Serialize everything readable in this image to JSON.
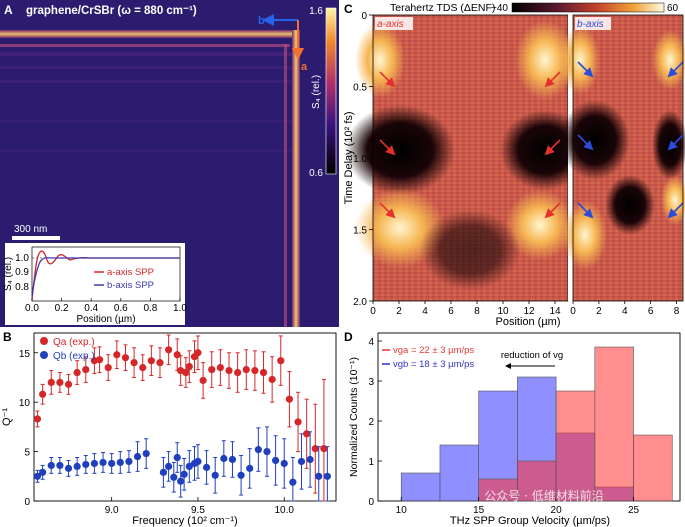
{
  "panelA": {
    "letter": "A",
    "title": "graphene/CrSBr (ω = 880 cm⁻¹)",
    "colorbar": {
      "max": "1.6",
      "min": "0.6",
      "label": "S₄ (rel.)",
      "low_color": "#1a1050",
      "high_color": "#fff4a0"
    },
    "scalebar": "300 nm",
    "arrow_b": "b",
    "arrow_a": "a",
    "inset": {
      "xlabel": "Position (µm)",
      "ylabel": "S₄ (rel.)",
      "xticks": [
        "0.0",
        "0.2",
        "0.4",
        "0.6",
        "0.8",
        "1.0"
      ],
      "yticks": [
        "0.8",
        "0.9",
        "1.0"
      ],
      "legend": [
        {
          "label": "a-axis SPP",
          "color": "#d62728"
        },
        {
          "label": "b-axis SPP",
          "color": "#3b3bb0"
        }
      ]
    }
  },
  "panelB": {
    "letter": "B",
    "xlabel": "Frequency (10² cm⁻¹)",
    "ylabel": "Q⁻¹",
    "legend": [
      {
        "label": "Qa (exp.)",
        "color": "#d62728"
      },
      {
        "label": "Qb (exp.)",
        "color": "#1f3fbf"
      }
    ],
    "chart_data": {
      "type": "scatter",
      "xlim": [
        8.55,
        10.3
      ],
      "ylim": [
        0,
        17
      ],
      "xticks": [
        9.0,
        9.5,
        10.0
      ],
      "yticks": [
        0,
        5,
        10,
        15
      ],
      "series": [
        {
          "name": "Qa (exp.)",
          "color": "#d62728",
          "x": [
            8.57,
            8.6,
            8.65,
            8.7,
            8.75,
            8.8,
            8.85,
            8.9,
            8.93,
            8.98,
            9.03,
            9.08,
            9.13,
            9.18,
            9.23,
            9.28,
            9.33,
            9.38,
            9.4,
            9.43,
            9.45,
            9.48,
            9.5,
            9.53,
            9.58,
            9.63,
            9.68,
            9.73,
            9.78,
            9.83,
            9.88,
            9.93,
            9.98,
            10.03,
            10.08,
            10.13,
            10.18,
            10.23
          ],
          "y": [
            8.3,
            10.8,
            12.0,
            12.0,
            11.8,
            13.0,
            13.3,
            14.2,
            14.3,
            13.5,
            14.8,
            14.5,
            14.0,
            13.5,
            14.2,
            14.0,
            15.3,
            14.8,
            13.2,
            13.0,
            13.6,
            14.6,
            15.0,
            12.2,
            13.3,
            13.5,
            13.2,
            13.0,
            13.3,
            13.2,
            13.0,
            12.3,
            14.2,
            10.3,
            8.0,
            6.8,
            5.3,
            5.3
          ],
          "err": [
            0.8,
            1.0,
            1.2,
            1.0,
            1.0,
            1.2,
            1.3,
            1.3,
            1.3,
            1.3,
            1.4,
            1.3,
            1.5,
            1.3,
            1.5,
            1.5,
            1.5,
            1.6,
            1.5,
            1.5,
            1.6,
            1.6,
            1.7,
            1.8,
            1.8,
            1.8,
            1.8,
            2.0,
            2.0,
            2.0,
            2.1,
            2.3,
            2.5,
            2.8,
            3.0,
            3.5,
            4.5,
            7.0
          ]
        },
        {
          "name": "Qb (exp.)",
          "color": "#1f3fbf",
          "x": [
            8.57,
            8.6,
            8.65,
            8.7,
            8.75,
            8.8,
            8.85,
            8.9,
            8.95,
            9.0,
            9.05,
            9.1,
            9.15,
            9.2,
            9.3,
            9.33,
            9.36,
            9.38,
            9.4,
            9.42,
            9.45,
            9.48,
            9.5,
            9.55,
            9.6,
            9.65,
            9.7,
            9.75,
            9.8,
            9.85,
            9.9,
            9.95,
            10.0,
            10.05,
            10.1,
            10.15,
            10.2,
            10.25
          ],
          "y": [
            2.5,
            2.9,
            3.6,
            3.6,
            3.3,
            3.5,
            3.7,
            3.8,
            3.9,
            3.8,
            3.9,
            4.0,
            4.5,
            4.8,
            2.9,
            3.5,
            2.4,
            4.4,
            2.0,
            2.7,
            3.5,
            3.8,
            4.0,
            3.4,
            2.6,
            4.3,
            4.2,
            2.6,
            3.3,
            5.2,
            5.0,
            4.1,
            3.8,
            1.9,
            4.0,
            4.2,
            2.5,
            2.5
          ],
          "err": [
            0.6,
            0.7,
            0.8,
            0.8,
            0.8,
            0.9,
            0.9,
            1.0,
            1.0,
            1.0,
            1.1,
            1.1,
            1.5,
            1.5,
            1.5,
            1.5,
            1.5,
            1.5,
            1.6,
            1.6,
            1.6,
            1.7,
            1.7,
            1.7,
            1.8,
            1.8,
            1.8,
            2.0,
            2.0,
            2.2,
            2.5,
            2.5,
            2.5,
            2.5,
            2.8,
            2.8,
            3.0,
            3.0
          ]
        }
      ]
    }
  },
  "panelC": {
    "letter": "C",
    "title": "Terahertz TDS (ΔENF)",
    "cbar_min": "−40",
    "cbar_max": "60",
    "sub_a": "a-axis",
    "sub_b": "b-axis",
    "xlabel": "Position (µm)",
    "ylabel": "Time Delay (10² fs)",
    "xticks_a": [
      "0",
      "2",
      "4",
      "6",
      "8",
      "10",
      "12",
      "14"
    ],
    "xticks_b": [
      "0",
      "2",
      "4",
      "6",
      "8"
    ],
    "yticks": [
      "0",
      "0.5",
      "1.0",
      "1.5",
      "2.0"
    ]
  },
  "panelD": {
    "letter": "D",
    "xlabel": "THz SPP Group Velocity (µm/ps)",
    "ylabel": "Normalized Counts (10⁻¹)",
    "annotation": "reduction of vg",
    "legend": [
      {
        "label": "vga = 22 ± 3 µm/ps",
        "color": "#e53935"
      },
      {
        "label": "vgb = 18 ± 3 µm/ps",
        "color": "#3333cc"
      }
    ],
    "watermark": "公众号 · 低维材料前沿",
    "chart_data": {
      "type": "bar",
      "xlim": [
        8.5,
        28
      ],
      "ylim": [
        0,
        4.2
      ],
      "xticks": [
        10,
        15,
        20,
        25
      ],
      "yticks": [
        0,
        1,
        2,
        3,
        4
      ],
      "bin_edges": [
        10,
        12.5,
        15,
        17.5,
        20,
        22.5,
        25,
        27.5
      ],
      "series": [
        {
          "name": "vgb",
          "color": "#3333ff",
          "values": [
            0.7,
            1.4,
            2.75,
            3.1,
            1.7,
            0.35,
            0
          ]
        },
        {
          "name": "vga",
          "color": "#ff3333",
          "values": [
            0,
            0,
            0.55,
            1.0,
            2.75,
            3.85,
            1.65
          ]
        }
      ]
    }
  }
}
